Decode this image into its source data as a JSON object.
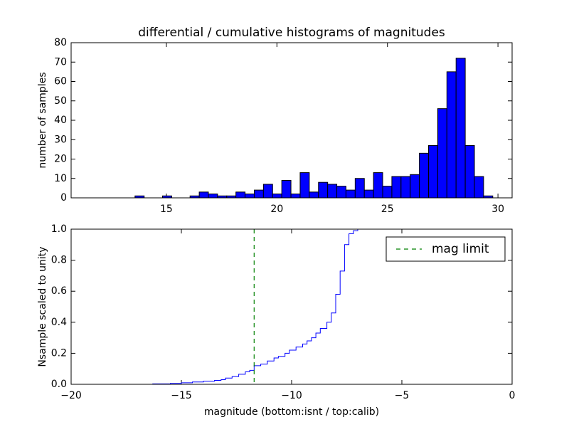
{
  "chart_data": [
    {
      "type": "histogram",
      "title": "differential / cumulative histograms of magnitudes",
      "ylabel": "number of samples",
      "bins": [
        13.58,
        13.995,
        14.41,
        14.825,
        15.24,
        15.655,
        16.07,
        16.485,
        16.9,
        17.315,
        17.73,
        18.145,
        18.56,
        18.975,
        19.39,
        19.805,
        20.22,
        20.635,
        21.05,
        21.465,
        21.88,
        22.295,
        22.71,
        23.125,
        23.54,
        23.955,
        24.37,
        24.785,
        25.2,
        25.615,
        26.03,
        26.445,
        26.86,
        27.275,
        27.69,
        28.105,
        28.52,
        28.935,
        29.35,
        29.765
      ],
      "counts": [
        1,
        0,
        0,
        1,
        0,
        0,
        1,
        3,
        2,
        1,
        1,
        3,
        2,
        4,
        7,
        2,
        9,
        2,
        13,
        3,
        8,
        7,
        6,
        4,
        10,
        4,
        13,
        6,
        11,
        11,
        12,
        23,
        27,
        46,
        65,
        72,
        27,
        11,
        1
      ],
      "color": "#0000ff",
      "xlim": [
        10.69,
        30.64
      ],
      "ylim": [
        0,
        80
      ],
      "xticks": [
        15,
        20,
        25,
        30
      ],
      "yticks": [
        0,
        10,
        20,
        30,
        40,
        50,
        60,
        70,
        80
      ]
    },
    {
      "type": "line",
      "drawstyle": "steps-post",
      "xlabel": "magnitude (bottom:isnt / top:calib)",
      "ylabel": "Nsample scaled to unity",
      "x": [
        -20,
        -16.3,
        -15.5,
        -15,
        -14.5,
        -14,
        -13.5,
        -13.2,
        -13,
        -12.7,
        -12.4,
        -12.1,
        -11.9,
        -11.7,
        -11.4,
        -11.1,
        -10.8,
        -10.6,
        -10.3,
        -10.1,
        -9.8,
        -9.5,
        -9.3,
        -9.1,
        -8.9,
        -8.7,
        -8.4,
        -8.2,
        -8.0,
        -7.8,
        -7.6,
        -7.4,
        -7.2,
        -7.0,
        0
      ],
      "values": [
        0,
        0.003,
        0.006,
        0.01,
        0.015,
        0.02,
        0.025,
        0.03,
        0.04,
        0.05,
        0.065,
        0.08,
        0.09,
        0.12,
        0.13,
        0.15,
        0.17,
        0.18,
        0.2,
        0.22,
        0.24,
        0.26,
        0.28,
        0.3,
        0.33,
        0.36,
        0.4,
        0.46,
        0.58,
        0.73,
        0.9,
        0.97,
        0.99,
        1.0,
        1.0
      ],
      "color": "#0000ff",
      "reference_line": {
        "name": "mag limit",
        "x": -11.7,
        "color": "#008000",
        "dashed": true
      },
      "legend": "upper right",
      "xlim": [
        -20,
        0
      ],
      "ylim": [
        0,
        1
      ],
      "xticks": [
        {
          "value": -20,
          "label": "−20"
        },
        {
          "value": -15,
          "label": "−15"
        },
        {
          "value": -10,
          "label": "−10"
        },
        {
          "value": -5,
          "label": "−5"
        },
        0
      ],
      "yticks": [
        {
          "value": 0,
          "label": "0.0"
        },
        0.2,
        0.4,
        0.6,
        0.8,
        {
          "value": 1,
          "label": "1.0"
        }
      ]
    }
  ]
}
